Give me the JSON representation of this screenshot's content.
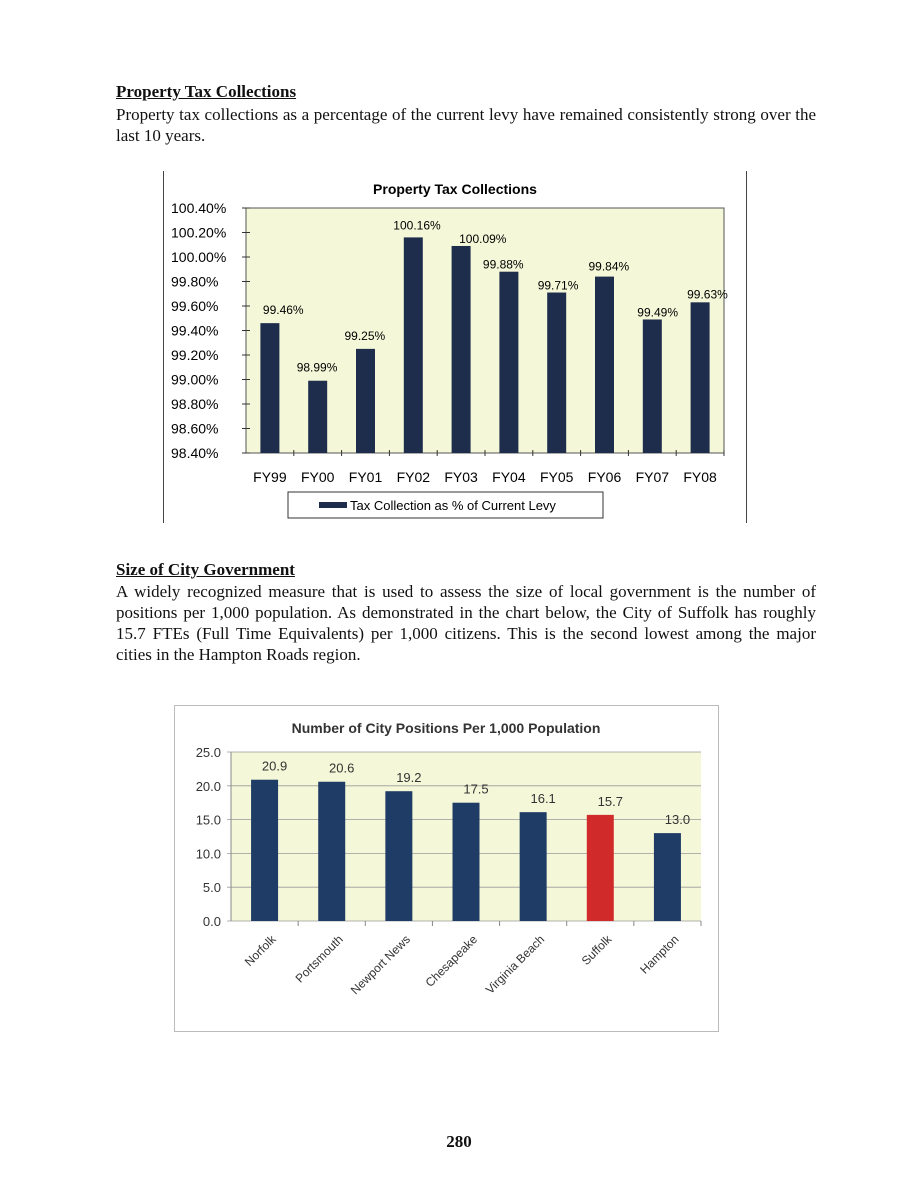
{
  "section1": {
    "heading": "Property Tax Collections",
    "paragraph": "Property tax collections as a percentage of the current levy have remained consistently strong over the last 10 years."
  },
  "section2": {
    "heading": "Size of City Government",
    "paragraph": "A widely recognized measure that is used to assess the size of local government is the number of positions per 1,000 population. As demonstrated in the chart below, the City of Suffolk has roughly 15.7 FTEs (Full Time Equivalents) per 1,000 citizens. This is the second lowest among the major cities in the Hampton Roads region."
  },
  "page_number": "280",
  "chart_data": [
    {
      "type": "bar",
      "title": "Property Tax Collections",
      "categories": [
        "FY99",
        "FY00",
        "FY01",
        "FY02",
        "FY03",
        "FY04",
        "FY05",
        "FY06",
        "FY07",
        "FY08"
      ],
      "series": [
        {
          "name": "Tax Collection as % of Current Levy",
          "values": [
            99.46,
            98.99,
            99.25,
            100.16,
            100.09,
            99.88,
            99.71,
            99.84,
            99.49,
            99.63
          ],
          "labels": [
            "99.46%",
            "98.99%",
            "99.25%",
            "100.16%",
            "100.09%",
            "99.88%",
            "99.71%",
            "99.84%",
            "99.49%",
            "99.63%"
          ]
        }
      ],
      "yticks": [
        "100.40%",
        "100.20%",
        "100.00%",
        "99.80%",
        "99.60%",
        "99.40%",
        "99.20%",
        "99.00%",
        "98.80%",
        "98.60%",
        "98.40%"
      ],
      "ylim": [
        98.4,
        100.4
      ],
      "legend": "bottom",
      "grid": false,
      "colors": {
        "bar": "#1f2d4c",
        "plot_bg": "#f4f8d8"
      }
    },
    {
      "type": "bar",
      "title": "Number of City Positions Per 1,000 Population",
      "categories": [
        "Norfolk",
        "Portsmouth",
        "Newport News",
        "Chesapeake",
        "Virginia Beach",
        "Suffolk",
        "Hampton"
      ],
      "values": [
        20.9,
        20.6,
        19.2,
        17.5,
        16.1,
        15.7,
        13.0
      ],
      "labels": [
        "20.9",
        "20.6",
        "19.2",
        "17.5",
        "16.1",
        "15.7",
        "13.0"
      ],
      "highlight": "Suffolk",
      "yticks": [
        "25.0",
        "20.0",
        "15.0",
        "10.0",
        "5.0",
        "0.0"
      ],
      "ylim": [
        0,
        25
      ],
      "grid": true,
      "colors": {
        "bar": "#1f3c66",
        "highlight": "#d12a2a",
        "plot_bg": "#f4f8d8"
      }
    }
  ]
}
